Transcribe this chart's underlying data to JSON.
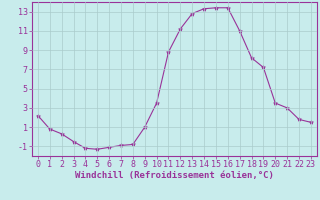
{
  "x": [
    0,
    1,
    2,
    3,
    4,
    5,
    6,
    7,
    8,
    9,
    10,
    11,
    12,
    13,
    14,
    15,
    16,
    17,
    18,
    19,
    20,
    21,
    22,
    23
  ],
  "y": [
    2.2,
    0.8,
    0.3,
    -0.5,
    -1.2,
    -1.3,
    -1.1,
    -0.9,
    -0.8,
    1.0,
    3.5,
    8.8,
    11.2,
    12.8,
    13.3,
    13.4,
    13.4,
    11.0,
    8.2,
    7.2,
    3.5,
    3.0,
    1.8,
    1.5
  ],
  "line_color": "#993399",
  "marker": "*",
  "marker_size": 3,
  "bg_color": "#c8ecec",
  "grid_color": "#aacccc",
  "axis_color": "#993399",
  "xlabel": "Windchill (Refroidissement éolien,°C)",
  "yticks": [
    -1,
    1,
    3,
    5,
    7,
    9,
    11,
    13
  ],
  "xticks": [
    0,
    1,
    2,
    3,
    4,
    5,
    6,
    7,
    8,
    9,
    10,
    11,
    12,
    13,
    14,
    15,
    16,
    17,
    18,
    19,
    20,
    21,
    22,
    23
  ],
  "xlim": [
    -0.5,
    23.5
  ],
  "ylim": [
    -2.0,
    14.0
  ],
  "label_fontsize": 6.5,
  "tick_fontsize": 6.0
}
